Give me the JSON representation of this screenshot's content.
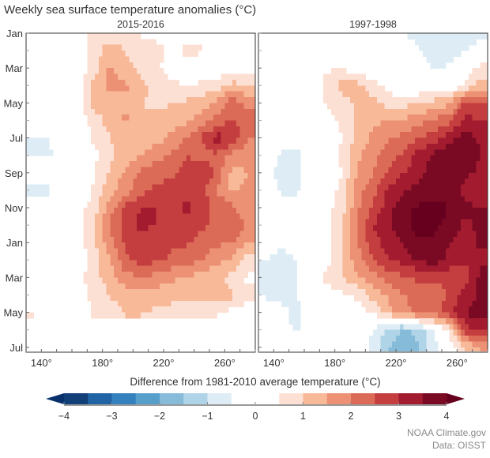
{
  "title": "Weekly sea surface temperature anomalies (°C)",
  "credits": {
    "line1": "NOAA Climate.gov",
    "line2": "Data: OISST"
  },
  "chart_data": {
    "type": "heatmap",
    "title": "Weekly sea surface temperature anomalies (°C)",
    "x_ticks": [
      140,
      180,
      220,
      260
    ],
    "x_tick_labels": [
      "140°",
      "180°",
      "220°",
      "260°"
    ],
    "xlim": [
      130,
      280
    ],
    "y_tick_labels": [
      "Jan",
      "Mar",
      "May",
      "Jul",
      "Sep",
      "Nov",
      "Jan",
      "Mar",
      "May",
      "Jul"
    ],
    "longitudes": [
      135,
      145,
      155,
      165,
      175,
      185,
      195,
      205,
      215,
      225,
      235,
      245,
      255,
      265,
      275
    ],
    "months": [
      "Jan",
      "Feb",
      "Mar",
      "Apr",
      "May",
      "Jun",
      "Jul",
      "Aug",
      "Sep",
      "Oct",
      "Nov",
      "Dec",
      "Jan",
      "Feb",
      "Mar",
      "Apr",
      "May",
      "Jun",
      "Jul"
    ],
    "panels": [
      {
        "title": "2015-2016",
        "z": [
          [
            0,
            0,
            0,
            0.2,
            0.8,
            0.8,
            0.8,
            0.5,
            0.3,
            0.3,
            0.3,
            0.5,
            0.5,
            0.5,
            0.4
          ],
          [
            0,
            0,
            0,
            0.1,
            0.8,
            1.2,
            1.0,
            0.6,
            0.7,
            0.3,
            0.6,
            0.5,
            0.3,
            0.2,
            0
          ],
          [
            0,
            -0.2,
            0,
            0.2,
            0.8,
            1.6,
            1.2,
            0.8,
            0.6,
            0.2,
            0.3,
            0.4,
            0.1,
            0.2,
            0
          ],
          [
            0,
            0,
            0,
            0.3,
            1.2,
            1.6,
            1.6,
            1.2,
            0.8,
            0.7,
            0.4,
            0.6,
            0.8,
            1.2,
            1.0
          ],
          [
            0,
            0,
            0,
            0.4,
            1.2,
            1.3,
            1.3,
            1.0,
            0.9,
            1.0,
            1.1,
            1.3,
            1.6,
            2.3,
            1.8
          ],
          [
            0,
            0,
            0,
            0.2,
            0.8,
            1.2,
            1.6,
            1.2,
            1.1,
            1.2,
            1.4,
            1.7,
            2.2,
            2.6,
            2.2
          ],
          [
            -0.6,
            -0.5,
            0,
            0.1,
            0.6,
            1.0,
            1.2,
            1.2,
            1.3,
            1.6,
            2.0,
            2.6,
            3.2,
            3.0,
            2.0
          ],
          [
            -0.5,
            -0.6,
            0,
            0,
            0.4,
            0.9,
            1.2,
            1.5,
            1.8,
            2.1,
            2.5,
            2.3,
            2.4,
            1.8,
            1.8
          ],
          [
            0,
            0,
            0,
            0,
            0.5,
            1.1,
            1.6,
            2.1,
            2.3,
            2.4,
            2.7,
            3.0,
            2.3,
            1.3,
            1.5
          ],
          [
            -0.7,
            -0.6,
            0,
            0,
            0.6,
            1.3,
            1.8,
            2.3,
            2.6,
            2.7,
            2.8,
            2.7,
            2.0,
            1.4,
            1.6
          ],
          [
            0,
            0,
            0,
            0.3,
            0.8,
            1.8,
            2.6,
            3.0,
            3.0,
            2.9,
            3.1,
            2.8,
            2.3,
            2.2,
            1.5
          ],
          [
            0,
            0,
            0,
            0.3,
            1.0,
            2.0,
            2.8,
            3.1,
            3.0,
            2.8,
            2.9,
            2.6,
            2.3,
            2.5,
            1.8
          ],
          [
            0,
            0,
            0,
            0.3,
            1.0,
            1.8,
            2.6,
            2.8,
            2.7,
            2.6,
            2.6,
            2.3,
            2.1,
            2.0,
            1.5
          ],
          [
            0,
            0,
            0,
            0.2,
            0.8,
            1.5,
            2.4,
            2.7,
            2.6,
            2.4,
            2.2,
            2.0,
            1.7,
            1.4,
            0.8
          ],
          [
            0,
            0,
            0,
            0.4,
            0.8,
            1.3,
            1.8,
            2.0,
            1.8,
            1.6,
            1.5,
            1.2,
            1.1,
            0.8,
            0.4
          ],
          [
            0,
            0,
            0,
            0.2,
            0.7,
            1.0,
            1.3,
            1.4,
            1.3,
            1.2,
            1.1,
            1.2,
            1.4,
            1.1,
            0.6
          ],
          [
            0.5,
            0,
            0,
            0.2,
            0.6,
            0.8,
            1.0,
            1.0,
            0.9,
            0.8,
            0.7,
            0.6,
            0.5,
            0.3,
            0.3
          ],
          null,
          null
        ]
      },
      {
        "title": "1997-1998",
        "z": [
          [
            0,
            0,
            0,
            0,
            0,
            0,
            0,
            0,
            0,
            -0.5,
            -0.6,
            -1.0,
            -0.8,
            -0.7,
            -0.6
          ],
          [
            0,
            -0.2,
            0,
            0,
            0.3,
            0.2,
            0,
            0,
            0,
            -0.3,
            -0.5,
            -0.9,
            -0.7,
            -0.5,
            -0.3
          ],
          [
            -0.3,
            -0.6,
            -0.3,
            0,
            0.4,
            0.5,
            0,
            0,
            0,
            0,
            0,
            -0.6,
            -0.4,
            0,
            0.7
          ],
          [
            0,
            0,
            0,
            0,
            0.8,
            1.2,
            1.2,
            0.7,
            0.3,
            0,
            0,
            0,
            0,
            0.5,
            1.2
          ],
          [
            0,
            -0.3,
            0,
            0,
            0.6,
            0.8,
            1.1,
            1.2,
            0.8,
            0.8,
            1.0,
            1.2,
            1.4,
            2.6,
            2.5
          ],
          [
            0,
            0,
            0,
            0,
            0.3,
            0.6,
            1.2,
            1.4,
            1.5,
            1.6,
            1.8,
            2.1,
            2.3,
            3.2,
            3.0
          ],
          [
            -0.3,
            0,
            0,
            0,
            0.2,
            0.5,
            1.2,
            1.6,
            1.9,
            2.2,
            2.5,
            2.8,
            3.3,
            3.8,
            3.4
          ],
          [
            0,
            -0.6,
            -0.8,
            0,
            0.2,
            0.6,
            1.4,
            1.8,
            2.3,
            2.6,
            3.2,
            3.6,
            3.9,
            3.9,
            3.5
          ],
          [
            -0.5,
            -0.6,
            -0.7,
            0,
            0.2,
            0.5,
            1.6,
            2.0,
            2.6,
            3.0,
            3.3,
            3.7,
            3.8,
            3.6,
            3.4
          ],
          [
            0,
            -0.6,
            -0.6,
            0,
            0.2,
            0.7,
            1.8,
            2.3,
            3.1,
            3.4,
            3.7,
            3.9,
            3.8,
            3.4,
            3.2
          ],
          [
            0,
            -0.4,
            0,
            0,
            0.3,
            0.8,
            1.9,
            2.6,
            3.3,
            3.8,
            4.1,
            4.1,
            4.0,
            3.6,
            3.5
          ],
          [
            0,
            0,
            0,
            0,
            0.4,
            1.0,
            2.0,
            3.0,
            3.4,
            3.9,
            4.2,
            4.1,
            3.9,
            3.4,
            3.6
          ],
          [
            0,
            -0.4,
            0,
            0,
            0.4,
            1.0,
            2.0,
            2.8,
            3.2,
            3.6,
            3.9,
            3.9,
            3.5,
            3.2,
            3.6
          ],
          [
            -0.5,
            -0.7,
            -0.5,
            0,
            0.3,
            1.0,
            1.8,
            2.4,
            3.0,
            3.2,
            3.6,
            3.7,
            3.4,
            3.0,
            3.4
          ],
          [
            -0.6,
            -0.7,
            -0.5,
            0,
            0.7,
            1.0,
            1.4,
            1.8,
            2.2,
            2.4,
            2.6,
            2.8,
            2.6,
            2.8,
            3.6
          ],
          [
            -0.6,
            -0.6,
            -0.5,
            -0.3,
            0.2,
            0.4,
            0.6,
            1.2,
            1.6,
            2.0,
            2.2,
            2.0,
            2.6,
            3.2,
            3.6
          ],
          [
            0,
            -0.4,
            -0.6,
            0,
            0,
            0.2,
            0.3,
            0.5,
            1.3,
            1.8,
            2.2,
            2.4,
            2.8,
            3.5,
            3.8
          ],
          [
            0,
            -0.3,
            -0.6,
            0,
            0,
            0,
            0,
            -0.5,
            -1.2,
            -1.6,
            -1.3,
            -0.5,
            0.7,
            2.8,
            3.2
          ],
          [
            0,
            0,
            0,
            0,
            0,
            0,
            0,
            -0.7,
            -1.5,
            -1.8,
            -1.5,
            -0.7,
            0,
            1.0,
            1.5
          ]
        ]
      }
    ],
    "colorbar": {
      "label": "Difference from 1981-2010 average temperature (°C)",
      "range": [
        -4,
        4
      ],
      "step": 0.5,
      "tick_values": [
        -4,
        -3,
        -2,
        -1,
        0,
        1,
        2,
        3,
        4
      ],
      "tick_labels": [
        "−4",
        "−3",
        "−2",
        "−1",
        "0",
        "1",
        "2",
        "3",
        "4"
      ],
      "colors": [
        "#123f78",
        "#2064a5",
        "#3581bd",
        "#569fcb",
        "#86bbda",
        "#b0d4e7",
        "#deecf5",
        "#ffffff",
        "#ffffff",
        "#fde0d4",
        "#f8b999",
        "#ec9174",
        "#db6b57",
        "#c53e3f",
        "#a31b2f",
        "#7a0a24"
      ],
      "under_color": "#08306b",
      "over_color": "#67001f",
      "extend": "both"
    }
  }
}
